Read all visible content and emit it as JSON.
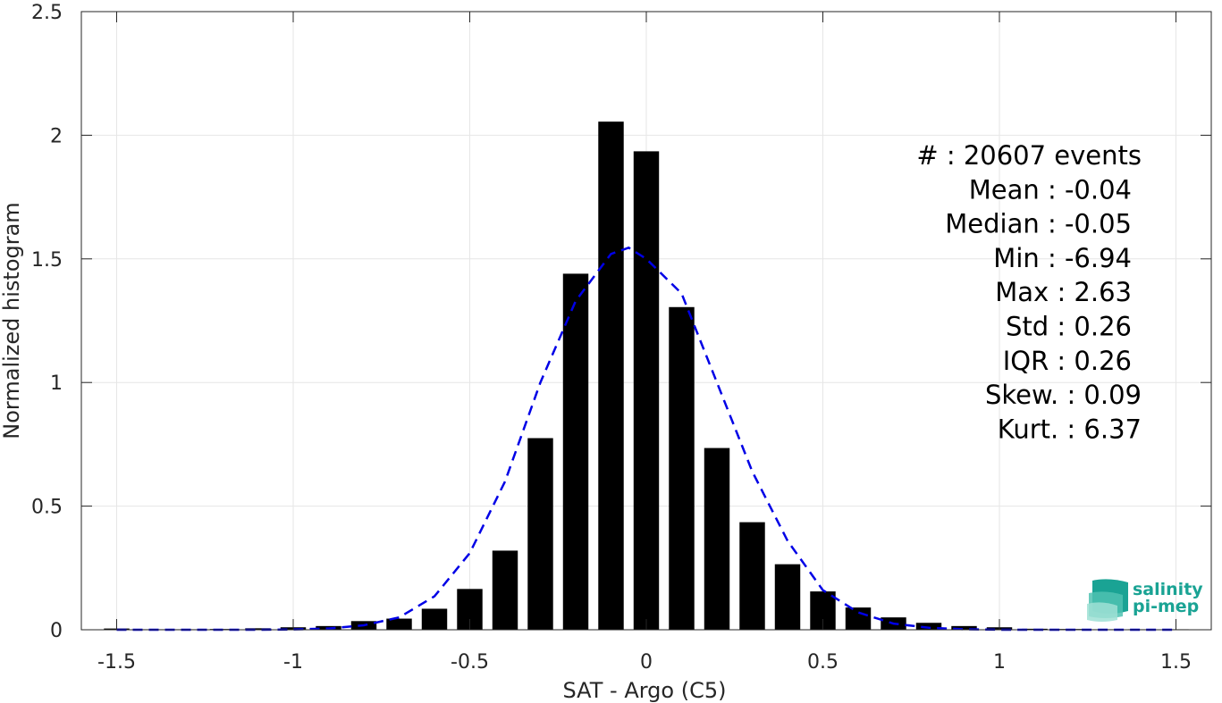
{
  "chart_data": {
    "type": "bar",
    "xlabel": "SAT - Argo (C5)",
    "ylabel": "Normalized histogram",
    "xlim": [
      -1.6,
      1.6
    ],
    "ylim": [
      0,
      2.5
    ],
    "xticks": [
      "-1.5",
      "-1",
      "-0.5",
      "0",
      "0.5",
      "1",
      "1.5"
    ],
    "xtick_values": [
      -1.5,
      -1,
      -0.5,
      0,
      0.5,
      1,
      1.5
    ],
    "yticks": [
      "0",
      "0.5",
      "1",
      "1.5",
      "2",
      "2.5"
    ],
    "ytick_values": [
      0,
      0.5,
      1,
      1.5,
      2,
      2.5
    ],
    "grid": true,
    "bar_color": "#000000",
    "fit_color": "#0000e6",
    "bars": {
      "x": [
        -1.5,
        -1.4,
        -1.3,
        -1.2,
        -1.1,
        -1.0,
        -0.9,
        -0.8,
        -0.7,
        -0.6,
        -0.5,
        -0.4,
        -0.3,
        -0.2,
        -0.1,
        0.0,
        0.1,
        0.2,
        0.3,
        0.4,
        0.5,
        0.6,
        0.7,
        0.8,
        0.9,
        1.0,
        1.1,
        1.2,
        1.3,
        1.4,
        1.5
      ],
      "values": [
        0.005,
        0.002,
        0.002,
        0.003,
        0.006,
        0.01,
        0.015,
        0.035,
        0.045,
        0.085,
        0.165,
        0.32,
        0.775,
        1.44,
        2.055,
        1.935,
        1.305,
        0.735,
        0.435,
        0.265,
        0.155,
        0.09,
        0.05,
        0.028,
        0.015,
        0.01,
        0.004,
        0.003,
        0.002,
        0.002,
        0.002
      ]
    },
    "fit_curve": {
      "x": [
        -1.5,
        -1.4,
        -1.3,
        -1.2,
        -1.1,
        -1.0,
        -0.9,
        -0.8,
        -0.7,
        -0.6,
        -0.5,
        -0.4,
        -0.3,
        -0.2,
        -0.1,
        -0.05,
        0.0,
        0.1,
        0.2,
        0.3,
        0.4,
        0.5,
        0.6,
        0.7,
        0.8,
        0.9,
        1.0,
        1.1,
        1.2,
        1.3,
        1.4,
        1.5
      ],
      "values": [
        0.0,
        0.0,
        0.0,
        0.0,
        0.0,
        0.001,
        0.005,
        0.018,
        0.05,
        0.135,
        0.31,
        0.6,
        1.0,
        1.33,
        1.52,
        1.545,
        1.5,
        1.36,
        1.0,
        0.64,
        0.36,
        0.16,
        0.07,
        0.025,
        0.008,
        0.002,
        0.0,
        0.0,
        0.0,
        0.0,
        0.0,
        0.0
      ]
    },
    "stats": [
      {
        "label": "#  : 20607 events"
      },
      {
        "label": "Mean : -0.04"
      },
      {
        "label": "Median : -0.05"
      },
      {
        "label": "Min : -6.94"
      },
      {
        "label": "Max : 2.63"
      },
      {
        "label": "Std : 0.26"
      },
      {
        "label": "IQR : 0.26"
      },
      {
        "label": "Skew. : 0.09"
      },
      {
        "label": "Kurt. : 6.37"
      }
    ]
  },
  "logo": {
    "line1": "salinity",
    "line2": "pi-mep",
    "color": "#1aa394"
  }
}
